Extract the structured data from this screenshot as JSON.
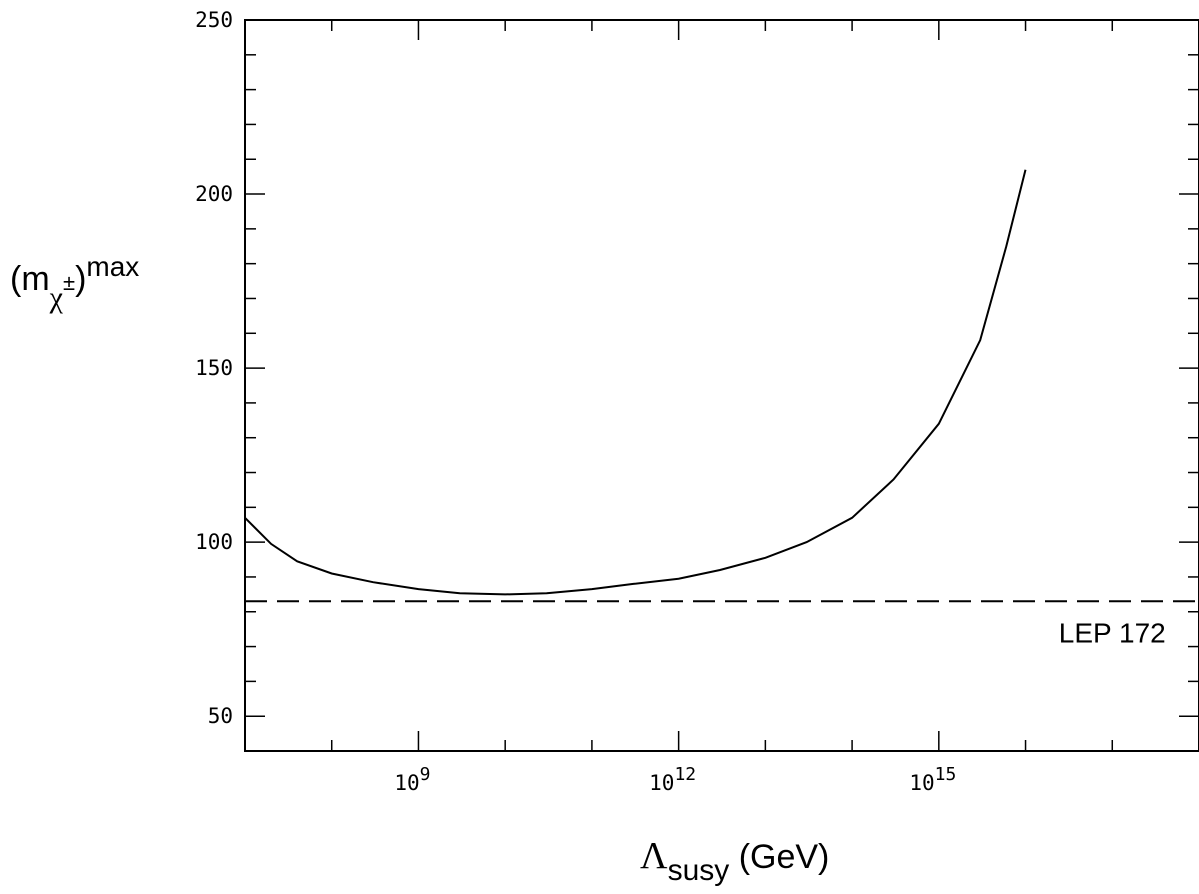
{
  "chart_data": {
    "type": "line",
    "xlabel": {
      "symbol": "Λ",
      "subscript": "susy",
      "unit": " (GeV)"
    },
    "ylabel": {
      "open": "(m",
      "subscript": "χ",
      "subscript_sup": "±",
      "close": ")",
      "superscript": "max"
    },
    "xscale": "log10",
    "xlim": [
      10000000.0,
      1e+18
    ],
    "ylim": [
      40,
      250
    ],
    "x_ticks": [
      {
        "base": "10",
        "exp": "9",
        "value": 1000000000.0
      },
      {
        "base": "10",
        "exp": "12",
        "value": 1000000000000.0
      },
      {
        "base": "10",
        "exp": "15",
        "value": 1000000000000000.0
      }
    ],
    "y_ticks": [
      {
        "label": "50",
        "value": 50
      },
      {
        "label": "100",
        "value": 100
      },
      {
        "label": "150",
        "value": 150
      },
      {
        "label": "200",
        "value": 200
      },
      {
        "label": "250",
        "value": 250
      }
    ],
    "series": [
      {
        "style": "solid",
        "x": [
          10000000.0,
          20000000.0,
          40000000.0,
          100000000.0,
          300000000.0,
          1000000000.0,
          3000000000.0,
          10000000000.0,
          30000000000.0,
          100000000000.0,
          300000000000.0,
          1000000000000.0,
          3000000000000.0,
          10000000000000.0,
          30000000000000.0,
          100000000000000.0,
          300000000000000.0,
          1000000000000000.0,
          3000000000000000.0,
          6000000000000000.0,
          1e+16
        ],
        "y": [
          107,
          99.5,
          94.5,
          91,
          88.5,
          86.5,
          85.3,
          85,
          85.3,
          86.5,
          88,
          89.5,
          92,
          95.5,
          100,
          107,
          118,
          134,
          158,
          185,
          207
        ]
      },
      {
        "style": "dashed",
        "label": "LEP 172",
        "x": [
          10000000.0,
          1e+18
        ],
        "y": [
          83,
          83
        ]
      }
    ],
    "annotations": [
      {
        "text": "LEP 172",
        "x": 1e+17,
        "y": 74
      }
    ]
  }
}
